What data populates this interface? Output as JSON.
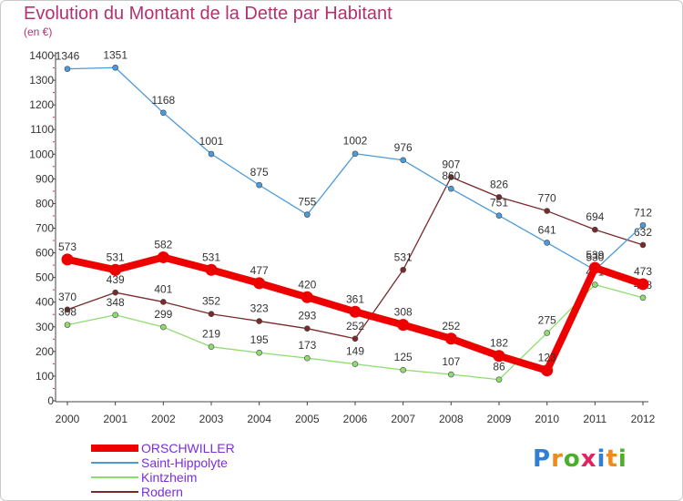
{
  "chart_data": {
    "type": "line",
    "title": "Evolution du Montant de la Dette par Habitant",
    "unit": "(en €)",
    "categories": [
      "2000",
      "2001",
      "2002",
      "2003",
      "2004",
      "2005",
      "2006",
      "2007",
      "2008",
      "2009",
      "2010",
      "2011",
      "2012"
    ],
    "ylim": [
      0,
      1400
    ],
    "yticks": [
      0,
      100,
      200,
      300,
      400,
      500,
      600,
      700,
      800,
      900,
      1000,
      1100,
      1200,
      1300,
      1400
    ],
    "grid": false,
    "legend_position": "bottom-left",
    "series": [
      {
        "name": "Rodern",
        "color": "#7a2a2a",
        "thick": false,
        "values": [
          370,
          439,
          401,
          352,
          323,
          293,
          252,
          531,
          907,
          826,
          770,
          694,
          632
        ]
      },
      {
        "name": "Kintzheim",
        "color": "#8fdc6e",
        "thick": false,
        "values": [
          308,
          348,
          299,
          219,
          195,
          173,
          149,
          125,
          107,
          86,
          275,
          471,
          418
        ]
      },
      {
        "name": "Saint-Hippolyte",
        "color": "#4d9ad8",
        "thick": false,
        "values": [
          1346,
          1351,
          1168,
          1001,
          875,
          755,
          1002,
          976,
          860,
          751,
          641,
          530,
          712
        ]
      },
      {
        "name": "ORSCHWILLER",
        "color": "#ee0000",
        "thick": true,
        "values": [
          573,
          531,
          582,
          531,
          477,
          420,
          361,
          308,
          252,
          182,
          123,
          539,
          473
        ]
      }
    ],
    "legend_order": [
      "ORSCHWILLER",
      "Saint-Hippolyte",
      "Kintzheim",
      "Rodern"
    ]
  },
  "logo": {
    "text": "Proxiti",
    "letters": [
      "P",
      "r",
      "o",
      "x",
      "i",
      "t",
      "i"
    ],
    "colors": [
      "#2f7fd4",
      "#f08a18",
      "#4caf2a",
      "#e0245e",
      "#2f7fd4",
      "#f08a18",
      "#4caf2a"
    ]
  }
}
